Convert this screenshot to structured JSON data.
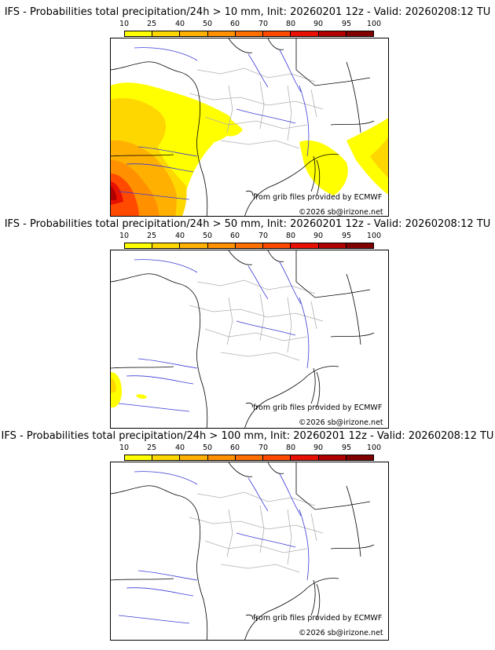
{
  "legend": {
    "ticks": [
      "10",
      "25",
      "40",
      "50",
      "60",
      "70",
      "80",
      "90",
      "95",
      "100"
    ],
    "colors": [
      "#ffff00",
      "#ffd700",
      "#ffb000",
      "#ff9000",
      "#ff7000",
      "#ff4a00",
      "#e81000",
      "#b00000",
      "#800000"
    ]
  },
  "panels": [
    {
      "title": "IFS - Probabilities total precipitation/24h > 10 mm, Init: 20260201 12z - Valid: 20260208:12 TU",
      "source": "from grib files provided by ECMWF",
      "copyright": "©2026 sb@irizone.net"
    },
    {
      "title": "IFS - Probabilities total precipitation/24h > 50 mm, Init: 20260201 12z - Valid: 20260208:12 TU",
      "source": "from grib files provided by ECMWF",
      "copyright": "©2026 sb@irizone.net"
    },
    {
      "title": "IFS - Probabilities total precipitation/24h > 100 mm, Init: 20260201 12z - Valid: 20260208:12 TU",
      "source": "from grib files provided by ECMWF",
      "copyright": "©2026 sb@irizone.net"
    }
  ]
}
